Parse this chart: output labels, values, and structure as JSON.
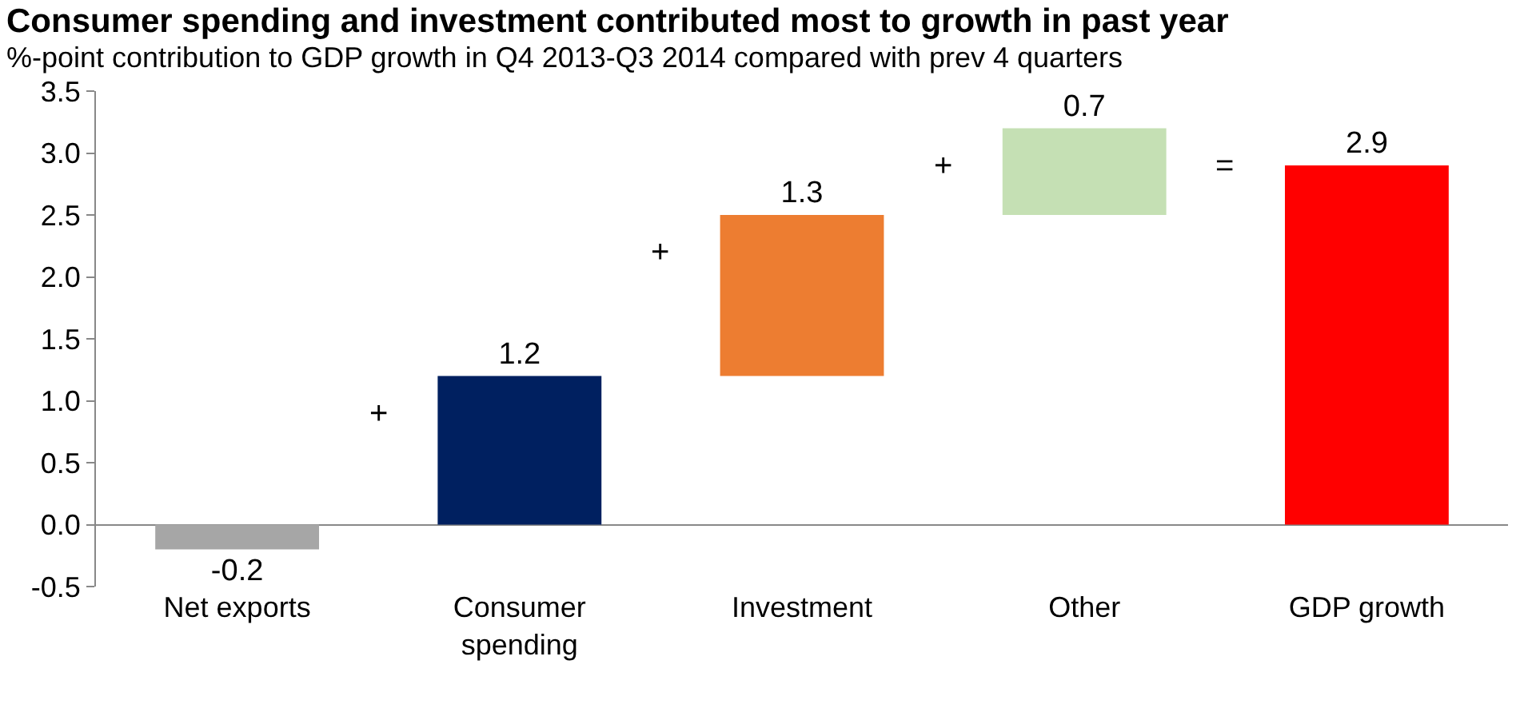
{
  "chart_data": {
    "type": "bar",
    "title": "Consumer spending and investment contributed most to growth in past year",
    "subtitle": "%-point contribution to GDP growth in Q4 2013-Q3 2014 compared with prev 4 quarters",
    "categories": [
      "Net exports",
      "Consumer spending",
      "Investment",
      "Other",
      "GDP growth"
    ],
    "values": [
      -0.2,
      1.2,
      1.3,
      0.7,
      2.9
    ],
    "base": [
      0,
      0,
      1.2,
      2.5,
      0
    ],
    "colors": [
      "#a6a6a6",
      "#002060",
      "#ed7d31",
      "#c5e0b4",
      "#ff0000"
    ],
    "data_labels": true,
    "annotations": [
      "+",
      "+",
      "+",
      "="
    ],
    "ylim": [
      -0.5,
      3.5
    ],
    "yticks": [
      {
        "value": -0.5,
        "label": "-0.5"
      },
      {
        "value": 0,
        "label": "0.0"
      },
      {
        "value": 0.5,
        "label": "0.5"
      },
      {
        "value": 1,
        "label": "1.0"
      },
      {
        "value": 1.5,
        "label": "1.5"
      },
      {
        "value": 2,
        "label": "2.0"
      },
      {
        "value": 2.5,
        "label": "2.5"
      },
      {
        "value": 3,
        "label": "3.0"
      },
      {
        "value": 3.5,
        "label": "3.5"
      }
    ],
    "grid": false
  }
}
